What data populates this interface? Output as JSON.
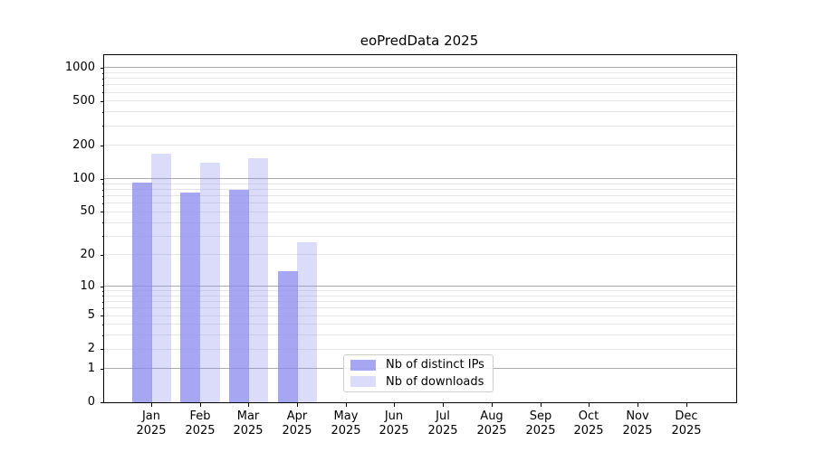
{
  "title": "eoPredData 2025",
  "chart_data": {
    "type": "bar",
    "title": "eoPredData 2025",
    "x_axis": {
      "months": [
        "Jan",
        "Feb",
        "Mar",
        "Apr",
        "May",
        "Jun",
        "Jul",
        "Aug",
        "Sep",
        "Oct",
        "Nov",
        "Dec"
      ],
      "year": "2025"
    },
    "y_axis": {
      "scale": "symlog: pixel position proportional to log10(1+value)",
      "major_ticks": [
        0,
        1,
        2,
        5,
        10,
        20,
        50,
        100,
        200,
        500,
        1000
      ],
      "minor_ticks": [
        3,
        4,
        6,
        7,
        8,
        9,
        30,
        40,
        60,
        70,
        80,
        90,
        300,
        400,
        600,
        700,
        800,
        900
      ],
      "decade_gridlines": [
        1,
        10,
        100,
        1000
      ],
      "ylim": [
        0,
        1290
      ],
      "grid": "on"
    },
    "series": [
      {
        "name": "Nb of distinct IPs",
        "color": "#8888ee",
        "opacity": 0.75,
        "values": [
          93,
          75,
          79,
          14,
          null,
          null,
          null,
          null,
          null,
          null,
          null,
          null
        ]
      },
      {
        "name": "Nb of downloads",
        "color": "#8888ee",
        "opacity": 0.3,
        "values": [
          168,
          140,
          154,
          26,
          null,
          null,
          null,
          null,
          null,
          null,
          null,
          null
        ]
      }
    ],
    "legend_position": "lower center inside plot"
  },
  "colors": {
    "bar_base": "#8888ee",
    "grid_decade": "#ababab",
    "grid_light": "#e6e6e6",
    "spine": "#000000",
    "legend_border": "#cccccc",
    "background": "#ffffff"
  }
}
